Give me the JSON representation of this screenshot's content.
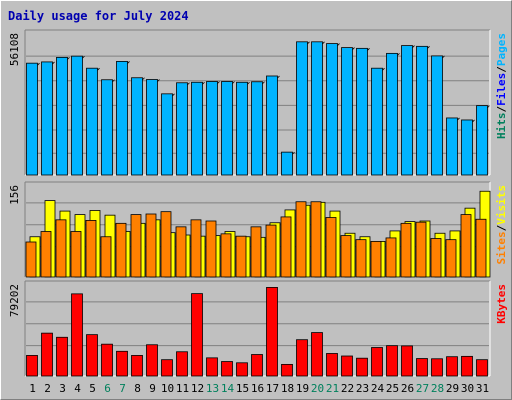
{
  "title": "Daily usage for July 2024",
  "colors": {
    "background": "#c0c0c0",
    "hits": "#00805c",
    "files": "#0000ff",
    "pages": "#00b4ff",
    "visits": "#ffff00",
    "sites": "#ff8000",
    "kbytes": "#ff0000",
    "weekday_label": "#000000",
    "weekend_label": "#00805c"
  },
  "chart_data": [
    {
      "type": "bar",
      "title": "Daily usage for July 2024",
      "categories": [
        "1",
        "2",
        "3",
        "4",
        "5",
        "6",
        "7",
        "8",
        "9",
        "10",
        "11",
        "12",
        "13",
        "14",
        "15",
        "16",
        "17",
        "18",
        "19",
        "20",
        "21",
        "22",
        "23",
        "24",
        "25",
        "26",
        "27",
        "28",
        "29",
        "30",
        "31"
      ],
      "weekend_days": [
        "6",
        "7",
        "13",
        "14",
        "20",
        "21",
        "27",
        "28"
      ],
      "y_max_label": "56108",
      "ylim": [
        0,
        56108
      ],
      "legend": [
        {
          "text": "Hits",
          "color": "#00805c"
        },
        {
          "text": "/",
          "color": "#000000"
        },
        {
          "text": "Files",
          "color": "#0000ff"
        },
        {
          "text": "/",
          "color": "#000000"
        },
        {
          "text": "Pages",
          "color": "#00b4ff"
        }
      ],
      "series": [
        {
          "name": "Hits",
          "color": "#00805c",
          "values": [
            44500,
            45000,
            46800,
            47300,
            42500,
            37900,
            45200,
            38700,
            38000,
            32300,
            36700,
            36900,
            37200,
            37200,
            36900,
            37100,
            39400,
            9100,
            53000,
            53000,
            52300,
            50700,
            50400,
            42500,
            48400,
            51500,
            51200,
            47400,
            22700,
            21900,
            27600
          ]
        },
        {
          "name": "Files",
          "color": "#0000ff",
          "values": [
            44500,
            45000,
            46800,
            47300,
            42500,
            37900,
            45200,
            38700,
            38000,
            32300,
            36700,
            36900,
            37200,
            37200,
            36900,
            37100,
            39400,
            9100,
            53000,
            53000,
            52300,
            50700,
            50400,
            42500,
            48400,
            51500,
            51200,
            47400,
            22700,
            21900,
            27600
          ]
        },
        {
          "name": "Pages",
          "color": "#00b4ff",
          "values": [
            44500,
            45000,
            46800,
            47300,
            42500,
            37900,
            45200,
            38700,
            38000,
            32300,
            36700,
            36900,
            37200,
            37200,
            36900,
            37100,
            39400,
            9100,
            53000,
            53000,
            52300,
            50700,
            50400,
            42500,
            48400,
            51500,
            51200,
            47400,
            22700,
            21900,
            27600
          ]
        }
      ]
    },
    {
      "type": "bar",
      "y_max_label": "156",
      "ylim": [
        0,
        156
      ],
      "legend": [
        {
          "text": "Sites",
          "color": "#ff8000"
        },
        {
          "text": "/",
          "color": "#000000"
        },
        {
          "text": "Visits",
          "color": "#ffff00"
        }
      ],
      "series": [
        {
          "name": "Visits",
          "color": "#ffff00",
          "values": [
            69,
            131,
            113,
            107,
            114,
            106,
            78,
            92,
            98,
            76,
            72,
            70,
            71,
            78,
            69,
            68,
            93,
            115,
            123,
            128,
            113,
            75,
            69,
            61,
            79,
            95,
            96,
            75,
            79,
            118,
            147
          ]
        },
        {
          "name": "Sites",
          "color": "#ff8000",
          "values": [
            60,
            78,
            98,
            78,
            97,
            69,
            92,
            107,
            108,
            112,
            86,
            98,
            96,
            74,
            70,
            86,
            89,
            103,
            129,
            129,
            102,
            71,
            64,
            61,
            67,
            92,
            94,
            66,
            64,
            107,
            99
          ]
        }
      ]
    },
    {
      "type": "bar",
      "y_max_label": "79202",
      "ylim": [
        0,
        79202
      ],
      "legend": [
        {
          "text": "KBytes",
          "color": "#ff0000"
        }
      ],
      "series": [
        {
          "name": "KBytes",
          "color": "#ff0000",
          "values": [
            17900,
            37300,
            33700,
            71500,
            36000,
            27700,
            21500,
            17900,
            27200,
            14200,
            21100,
            71700,
            15800,
            12600,
            11500,
            18700,
            77100,
            10100,
            31600,
            37800,
            19600,
            17400,
            15500,
            24800,
            26400,
            26200,
            15200,
            15000,
            16800,
            17100,
            14200
          ]
        }
      ]
    }
  ]
}
